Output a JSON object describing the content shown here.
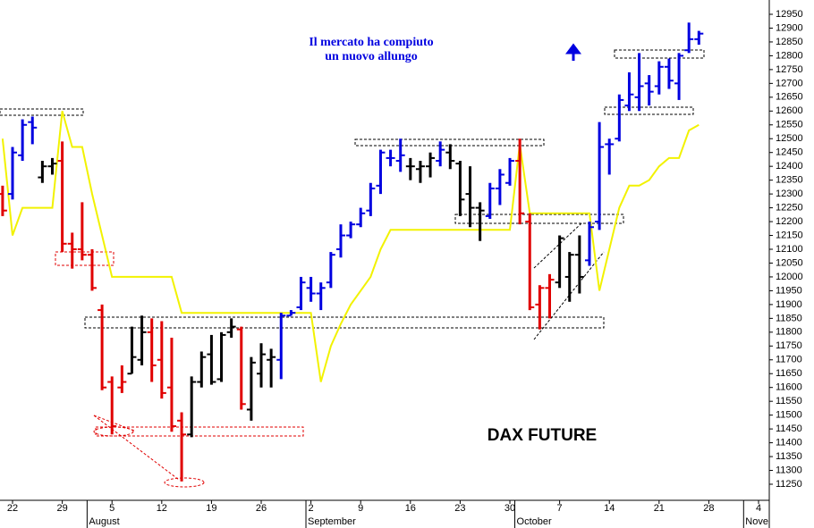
{
  "chart_data": {
    "type": "ohlc",
    "title": [
      "Il mercato ha compiuto",
      "un nuovo allungo"
    ],
    "label": "DAX FUTURE",
    "categories": [
      null,
      "22",
      null,
      null,
      null,
      null,
      "29",
      null,
      null,
      null,
      null,
      "5",
      null,
      null,
      null,
      null,
      "12",
      null,
      null,
      null,
      null,
      "19",
      null,
      null,
      null,
      null,
      "26",
      null,
      null,
      null,
      null,
      "2",
      null,
      null,
      null,
      null,
      "9",
      null,
      null,
      null,
      null,
      "16",
      null,
      null,
      null,
      null,
      "23",
      null,
      null,
      null,
      null,
      "30",
      null,
      null,
      null,
      null,
      "7",
      null,
      null,
      null,
      null,
      "14",
      null,
      null,
      null,
      null,
      "21",
      null,
      null,
      null,
      null,
      "28",
      null,
      null,
      null,
      null,
      "4"
    ],
    "months": [
      null,
      null,
      null,
      null,
      null,
      null,
      null,
      null,
      null,
      "August",
      null,
      null,
      null,
      null,
      null,
      null,
      null,
      null,
      null,
      null,
      null,
      null,
      null,
      null,
      null,
      null,
      null,
      null,
      null,
      null,
      null,
      "September",
      null,
      null,
      null,
      null,
      null,
      null,
      null,
      null,
      null,
      null,
      null,
      null,
      null,
      null,
      null,
      null,
      null,
      null,
      null,
      null,
      "October",
      null,
      null,
      null,
      null,
      null,
      null,
      null,
      null,
      null,
      null,
      null,
      null,
      null,
      null,
      null,
      null,
      null,
      null,
      null,
      null,
      null,
      null,
      "Nove",
      null
    ],
    "open": [
      12300,
      12300,
      12440,
      12560,
      12360,
      12400,
      12420,
      12120,
      12100,
      12080,
      11880,
      11620,
      11600,
      11650,
      11700,
      11800,
      11700,
      11600,
      11480,
      11430,
      11620,
      11720,
      11630,
      11800,
      11810,
      11520,
      11650,
      11700,
      11700,
      11860,
      11890,
      11960,
      11940,
      11980,
      12100,
      12150,
      12190,
      12240,
      12330,
      12430,
      12420,
      12400,
      12390,
      12400,
      12420,
      12450,
      12410,
      12300,
      12250,
      12220,
      12320,
      12340,
      12420,
      12200,
      11900,
      11960,
      11980,
      12000,
      12080,
      12060,
      12200,
      12480,
      12500,
      12620,
      12650,
      12700,
      12690,
      12760,
      12700,
      12820,
      12860,
      null,
      null,
      null,
      null,
      null,
      null
    ],
    "high": [
      12330,
      12470,
      12570,
      12580,
      12420,
      12430,
      12490,
      12160,
      12270,
      12100,
      11900,
      11640,
      11680,
      11820,
      11860,
      11850,
      11840,
      11780,
      11510,
      11640,
      11730,
      11790,
      11800,
      11850,
      11820,
      11710,
      11760,
      11740,
      11870,
      11880,
      12000,
      12000,
      11980,
      12090,
      12190,
      12200,
      12250,
      12340,
      12460,
      12460,
      12500,
      12430,
      12420,
      12450,
      12490,
      12480,
      12420,
      12400,
      12270,
      12340,
      12390,
      12430,
      12500,
      12230,
      11970,
      12010,
      12150,
      12090,
      12150,
      12200,
      12560,
      12500,
      12660,
      12740,
      12810,
      12730,
      12780,
      12790,
      12810,
      12920,
      12890,
      null,
      null,
      null,
      null,
      null,
      null
    ],
    "low": [
      12220,
      12280,
      12420,
      12480,
      12340,
      12370,
      12090,
      12030,
      12060,
      11950,
      11590,
      11430,
      11580,
      11650,
      11680,
      11620,
      11560,
      11440,
      11260,
      11420,
      11600,
      11610,
      11620,
      11780,
      11520,
      11480,
      11600,
      11600,
      11630,
      11860,
      11880,
      11910,
      11880,
      11960,
      12070,
      12140,
      12180,
      12220,
      12300,
      12400,
      12380,
      12350,
      12340,
      12360,
      12400,
      12390,
      12220,
      12180,
      12130,
      12210,
      12260,
      12330,
      12190,
      11880,
      11810,
      11850,
      11960,
      11910,
      11940,
      12040,
      12170,
      12370,
      12490,
      12600,
      12600,
      12620,
      12660,
      12680,
      12640,
      12810,
      12840,
      null,
      null,
      null,
      null,
      null,
      null
    ],
    "close": [
      12240,
      12450,
      12550,
      12540,
      12400,
      12410,
      12120,
      12100,
      12080,
      11960,
      11600,
      11460,
      11620,
      11710,
      11800,
      11680,
      11580,
      11460,
      11430,
      11620,
      11710,
      11620,
      11790,
      11820,
      11540,
      11690,
      11720,
      11710,
      11860,
      11870,
      11980,
      11940,
      11960,
      12080,
      12150,
      12190,
      12230,
      12320,
      12450,
      12430,
      12440,
      12400,
      12400,
      12430,
      12460,
      12420,
      12280,
      12250,
      12240,
      12320,
      12370,
      12420,
      12230,
      11890,
      11960,
      11990,
      12140,
      12080,
      12000,
      12180,
      12470,
      12480,
      12640,
      12660,
      12690,
      12670,
      12760,
      12710,
      12800,
      12860,
      12880,
      null,
      null,
      null,
      null,
      null,
      null
    ],
    "bar_colors": [
      "#e00000",
      "#0000e0",
      "#0000e0",
      "#0000e0",
      "#000000",
      "#000000",
      "#e00000",
      "#e00000",
      "#e00000",
      "#e00000",
      "#e00000",
      "#e00000",
      "#e00000",
      "#000000",
      "#000000",
      "#e00000",
      "#e00000",
      "#e00000",
      "#e00000",
      "#000000",
      "#000000",
      "#000000",
      "#000000",
      "#000000",
      "#e00000",
      "#000000",
      "#000000",
      "#000000",
      "#0000e0",
      "#0000e0",
      "#0000e0",
      "#0000e0",
      "#0000e0",
      "#0000e0",
      "#0000e0",
      "#0000e0",
      "#0000e0",
      "#0000e0",
      "#0000e0",
      "#0000e0",
      "#0000e0",
      "#000000",
      "#000000",
      "#000000",
      "#0000e0",
      "#000000",
      "#000000",
      "#000000",
      "#000000",
      "#0000e0",
      "#0000e0",
      "#0000e0",
      "#e00000",
      "#e00000",
      "#e00000",
      "#e00000",
      "#000000",
      "#000000",
      "#000000",
      "#0000e0",
      "#0000e0",
      "#0000e0",
      "#0000e0",
      "#0000e0",
      "#0000e0",
      "#0000e0",
      "#0000e0",
      "#0000e0",
      "#0000e0",
      "#0000e0",
      "#0000e0",
      null,
      null,
      null,
      null,
      null,
      null
    ],
    "line": {
      "color": "#f2f200",
      "values": [
        12500,
        12150,
        12250,
        12250,
        12250,
        12250,
        12600,
        12470,
        12470,
        12300,
        12150,
        12000,
        12000,
        12000,
        12000,
        12000,
        12000,
        12000,
        11870,
        11870,
        11870,
        11870,
        11870,
        11870,
        11870,
        11870,
        11870,
        11870,
        11870,
        11870,
        11870,
        11870,
        11620,
        11750,
        11830,
        11900,
        11950,
        12000,
        12100,
        12170,
        12170,
        12170,
        12170,
        12170,
        12170,
        12170,
        12170,
        12170,
        12170,
        12170,
        12170,
        12170,
        12480,
        12230,
        12230,
        12230,
        12230,
        12230,
        12230,
        12230,
        11950,
        12100,
        12250,
        12330,
        12330,
        12350,
        12400,
        12430,
        12430,
        12530,
        12550,
        null,
        null,
        null,
        null,
        null,
        null
      ]
    },
    "ylim": [
      11250,
      12950
    ],
    "yticks": [
      11250,
      11300,
      11350,
      11400,
      11450,
      11500,
      11550,
      11600,
      11650,
      11700,
      11750,
      11800,
      11850,
      11900,
      11950,
      12000,
      12050,
      12100,
      12150,
      12200,
      12250,
      12300,
      12350,
      12400,
      12450,
      12500,
      12550,
      12600,
      12650,
      12700,
      12750,
      12800,
      12850,
      12900,
      12950
    ]
  }
}
